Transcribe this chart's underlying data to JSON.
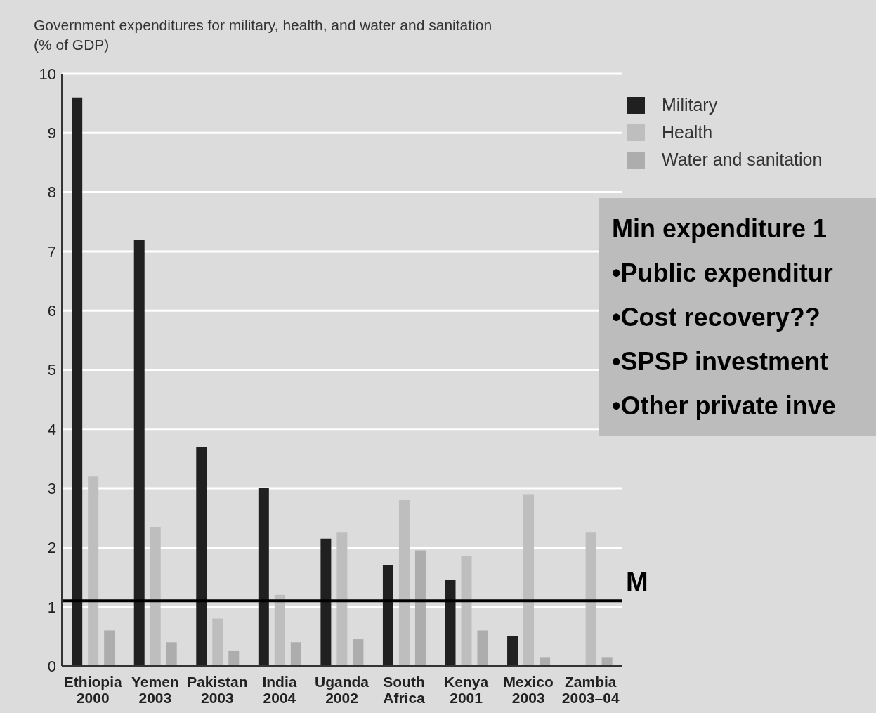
{
  "chart_data": {
    "type": "bar",
    "title": "Government expenditures for military, health, and water and sanitation",
    "subtitle": "(% of GDP)",
    "categories": [
      "Ethiopia\n2000",
      "Yemen\n2003",
      "Pakistan\n2003",
      "India\n2004",
      "Uganda\n2002",
      "South\nAfrica",
      "Kenya\n2001",
      "Mexico\n2003",
      "Zambia\n2003–04"
    ],
    "series": [
      {
        "name": "Military",
        "color": "#202020",
        "values": [
          9.6,
          7.2,
          3.7,
          3.0,
          2.15,
          1.7,
          1.45,
          0.5,
          null
        ]
      },
      {
        "name": "Health",
        "color": "#bebebe",
        "values": [
          3.2,
          2.35,
          0.8,
          1.2,
          2.25,
          2.8,
          1.85,
          2.9,
          2.25
        ]
      },
      {
        "name": "Water and sanitation",
        "color": "#adadad",
        "values": [
          0.6,
          0.4,
          0.25,
          0.4,
          0.45,
          1.95,
          0.6,
          0.15,
          0.15
        ]
      }
    ],
    "ylim": [
      0,
      10
    ],
    "yticks": [
      0,
      1,
      2,
      3,
      4,
      5,
      6,
      7,
      8,
      9,
      10
    ],
    "grid": "y",
    "legend": "top right",
    "ref_lines": [
      {
        "axis": "y",
        "value": 1.1,
        "label": "M",
        "color": "#000000"
      }
    ],
    "annotations": [
      "Min expenditure 1",
      "•Public expenditur",
      "•Cost recovery??",
      "•SPSP investment",
      "•Other private inve"
    ]
  }
}
